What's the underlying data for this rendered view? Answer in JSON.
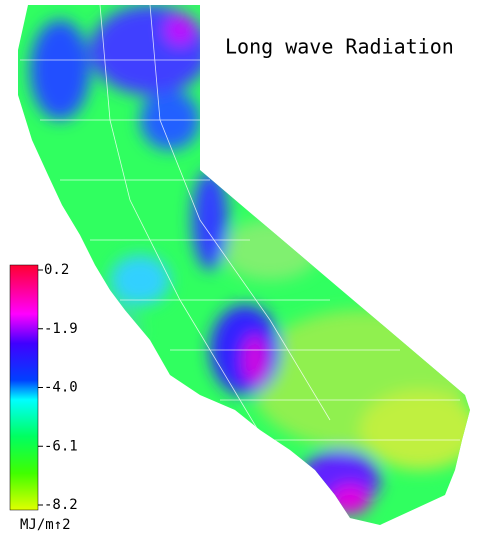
{
  "title": "Long wave Radiation",
  "colorbar": {
    "lim": [
      0.2,
      -8.2
    ],
    "ticks": [
      0.2,
      -1.9,
      {
        "value": -4,
        "label": "-4.0"
      },
      -6.1,
      -8.2
    ],
    "unit": "MJ/m↑2"
  }
}
